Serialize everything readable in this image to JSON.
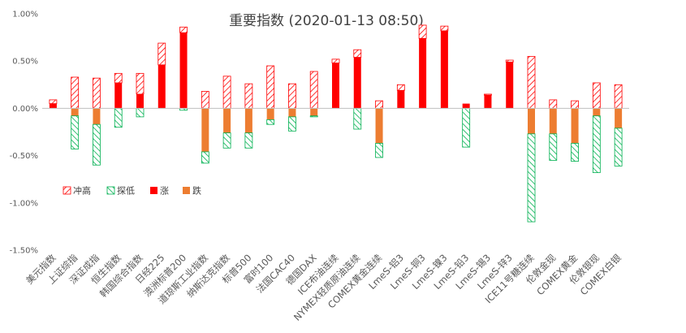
{
  "chart_data": {
    "type": "bar",
    "title": "重要指数 (2020-01-13 08:50)",
    "xlabel": "",
    "ylabel": "",
    "ylim": [
      -1.5,
      1.0
    ],
    "yticks": [
      "1.00%",
      "0.50%",
      "0.00%",
      "-0.50%",
      "-1.00%",
      "-1.50%"
    ],
    "ytick_values": [
      1.0,
      0.5,
      0.0,
      -0.5,
      -1.0,
      -1.5
    ],
    "grid": false,
    "legend_position": "left-lower",
    "categories": [
      "美元指数",
      "上证综指",
      "深证成指",
      "恒生指数",
      "韩国综合指数",
      "日经225",
      "澳洲标普200",
      "道琼斯工业指数",
      "纳斯达克指数",
      "标普500",
      "富时100",
      "法国CAC40",
      "德国DAX",
      "ICE布油连续",
      "NYMEX轻质原油连续",
      "COMEX黄金连续",
      "LmeS-铝3",
      "LmeS-铜3",
      "LmeS-镍3",
      "LmeS-铅3",
      "LmeS-锡3",
      "LmeS-锌3",
      "ICE11号糖连续",
      "伦敦金现",
      "COMEX黄金",
      "伦敦银现",
      "COMEX白银"
    ],
    "series": [
      {
        "name": "冲高",
        "values": [
          0.09,
          0.33,
          0.32,
          0.37,
          0.37,
          0.69,
          0.86,
          0.18,
          0.34,
          0.26,
          0.45,
          0.26,
          0.39,
          0.52,
          0.62,
          0.08,
          0.25,
          0.88,
          0.87,
          0.05,
          0.15,
          0.51,
          0.55,
          0.09,
          0.08,
          0.27,
          0.25
        ]
      },
      {
        "name": "探低",
        "values": [
          0,
          -0.43,
          -0.6,
          -0.2,
          -0.09,
          0,
          -0.02,
          -0.58,
          -0.42,
          -0.42,
          -0.17,
          -0.24,
          -0.09,
          0,
          -0.22,
          -0.52,
          0,
          0,
          0,
          -0.41,
          0,
          0,
          -1.2,
          -0.55,
          -0.56,
          -0.68,
          -0.61
        ]
      },
      {
        "name": "涨",
        "values": [
          0.05,
          0,
          0,
          0.27,
          0.15,
          0.46,
          0.8,
          0,
          0,
          0,
          0,
          0,
          0,
          0.48,
          0.54,
          0,
          0.19,
          0.74,
          0.82,
          0.05,
          0.14,
          0.49,
          0,
          0,
          0,
          0,
          0
        ]
      },
      {
        "name": "跌",
        "values": [
          0,
          -0.08,
          -0.17,
          0,
          0,
          0,
          0,
          -0.46,
          -0.26,
          -0.26,
          -0.12,
          -0.09,
          -0.08,
          0,
          0,
          -0.37,
          0,
          0,
          0,
          0,
          0,
          0,
          -0.27,
          -0.27,
          -0.37,
          -0.08,
          -0.21
        ]
      }
    ],
    "colors": {
      "冲高": "#ff0000",
      "探低": "#00b050",
      "涨": "#ff0000",
      "跌": "#ed7d31",
      "axis": "#bfbfbf",
      "text": "#595959"
    }
  }
}
